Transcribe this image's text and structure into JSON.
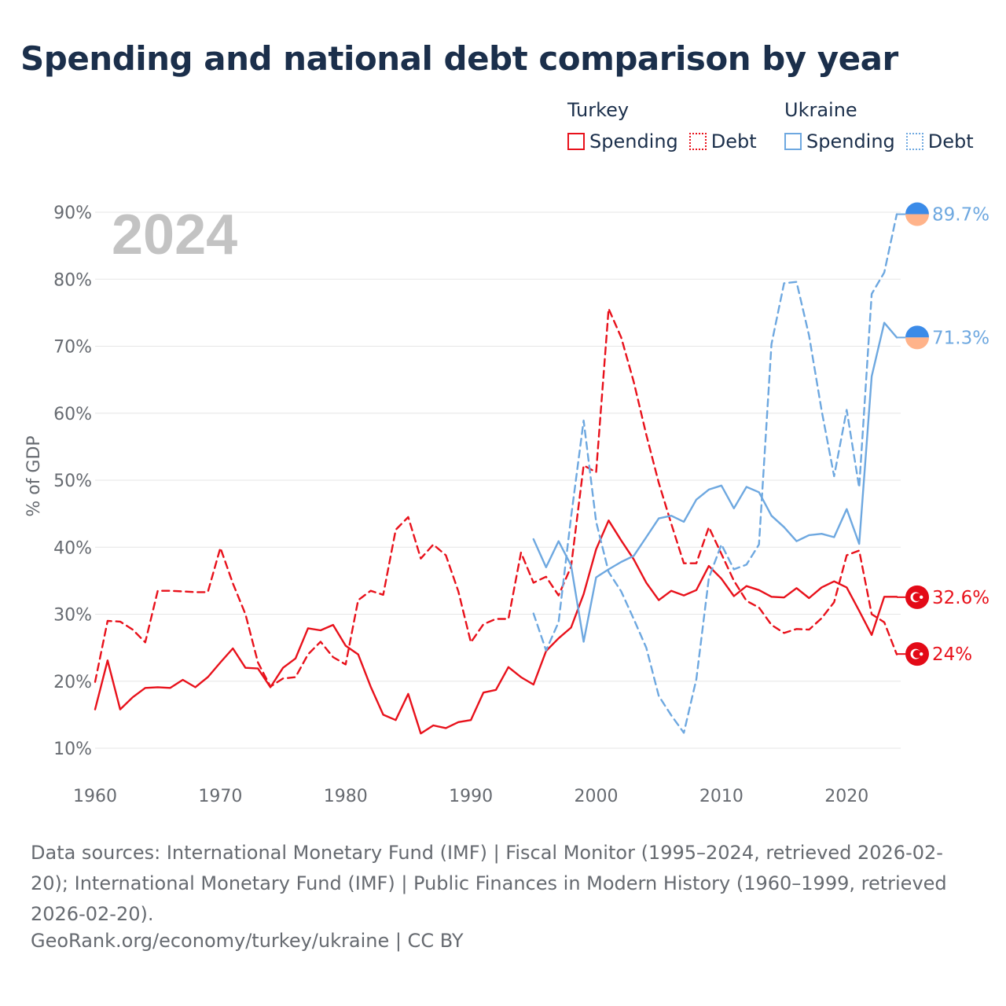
{
  "title": "Spending and national debt comparison by year",
  "colors": {
    "turkey": "#e8111b",
    "ukraine": "#6ea8e0",
    "grid": "#e6e6e6",
    "watermark": "#c3c3c3",
    "flag_blue": "#3b8be8",
    "flag_peach": "#ffb38a"
  },
  "legend": {
    "turkey": {
      "title": "Turkey",
      "spending": "Spending",
      "debt": "Debt"
    },
    "ukraine": {
      "title": "Ukraine",
      "spending": "Spending",
      "debt": "Debt"
    }
  },
  "sources": "Data sources: International Monetary Fund (IMF) | Fiscal Monitor (1995–2024, retrieved 2026-02-20); International Monetary Fund (IMF) | Public Finances in Modern History (1960–1999, retrieved 2026-02-20).",
  "credit": "GeoRank.org/economy/turkey/ukraine | CC BY",
  "chart_data": {
    "type": "line",
    "title": "Spending and national debt comparison by year",
    "watermark_year": "2024",
    "ylabel": "% of GDP",
    "xlabel": "",
    "xlim": [
      1960,
      2024
    ],
    "ylim": [
      10,
      90
    ],
    "x_ticks": [
      1960,
      1970,
      1980,
      1990,
      2000,
      2010,
      2020
    ],
    "x_tick_labels": [
      "1960",
      "1970",
      "1980",
      "1990",
      "2000",
      "2010",
      "2020"
    ],
    "y_ticks": [
      10,
      20,
      30,
      40,
      50,
      60,
      70,
      80,
      90
    ],
    "y_tick_labels": [
      "10%",
      "20%",
      "30%",
      "40%",
      "50%",
      "60%",
      "70%",
      "80%",
      "90%"
    ],
    "grid": true,
    "end_labels": {
      "turkey_spending": "32.6%",
      "turkey_debt": "24%",
      "ukraine_spending": "71.3%",
      "ukraine_debt": "89.7%"
    },
    "series": [
      {
        "id": "turkey_spending",
        "name": "Turkey Spending",
        "country": "turkey",
        "dash": "solid",
        "start": 1960,
        "values": [
          15.8,
          23.1,
          15.8,
          17.6,
          19.0,
          19.1,
          19.0,
          20.2,
          19.1,
          20.6,
          22.8,
          24.9,
          22.0,
          21.9,
          19.1,
          22.0,
          23.4,
          27.9,
          27.6,
          28.4,
          25.3,
          24.0,
          19.2,
          15.0,
          14.2,
          18.1,
          12.2,
          13.4,
          13.0,
          13.9,
          14.2,
          18.3,
          18.7,
          22.1,
          20.6,
          19.5,
          24.5,
          26.4,
          28.0,
          33.0,
          39.7,
          44.0,
          41.0,
          38.2,
          34.7,
          32.1,
          33.5,
          32.8,
          33.6,
          37.2,
          35.3,
          32.7,
          34.2,
          33.6,
          32.6,
          32.5,
          33.9,
          32.4,
          34.0,
          34.9,
          34.0,
          30.5,
          26.9,
          32.6,
          32.6
        ]
      },
      {
        "id": "turkey_debt",
        "name": "Turkey Debt",
        "country": "turkey",
        "dash": "dashed",
        "start": 1960,
        "values": [
          19.9,
          29.0,
          28.9,
          27.7,
          25.8,
          33.5,
          33.5,
          33.4,
          33.3,
          33.3,
          39.9,
          34.6,
          30.0,
          22.8,
          19.2,
          20.4,
          20.6,
          24.0,
          25.9,
          23.6,
          22.5,
          32.1,
          33.5,
          32.9,
          42.6,
          44.5,
          38.3,
          40.4,
          38.8,
          33.4,
          25.8,
          28.5,
          29.3,
          29.3,
          39.2,
          34.7,
          35.6,
          32.8,
          37.1,
          52.2,
          51.2,
          75.6,
          71.3,
          64.7,
          56.8,
          49.6,
          43.5,
          37.6,
          37.6,
          43.0,
          39.0,
          35.0,
          32.0,
          31.0,
          28.4,
          27.2,
          27.8,
          27.7,
          29.4,
          31.8,
          38.8,
          39.5,
          30.0,
          28.8,
          24.0
        ]
      },
      {
        "id": "ukraine_spending",
        "name": "Ukraine Spending",
        "country": "ukraine",
        "dash": "solid",
        "start": 1995,
        "values": [
          41.2,
          37.0,
          40.9,
          37.3,
          25.9,
          35.5,
          36.7,
          37.8,
          38.7,
          41.5,
          44.3,
          44.7,
          43.8,
          47.1,
          48.6,
          49.2,
          45.8,
          49.0,
          48.2,
          44.7,
          43.0,
          40.9,
          41.8,
          42.0,
          41.5,
          45.7,
          40.5,
          65.5,
          73.5,
          71.3
        ]
      },
      {
        "id": "ukraine_debt",
        "name": "Ukraine Debt",
        "country": "ukraine",
        "dash": "dashed",
        "start": 1995,
        "values": [
          30.1,
          24.6,
          28.8,
          44.5,
          58.9,
          43.8,
          36.3,
          33.4,
          29.3,
          25.0,
          17.8,
          14.9,
          12.3,
          20.3,
          35.4,
          40.4,
          36.7,
          37.4,
          40.4,
          70.3,
          79.4,
          79.6,
          71.6,
          60.4,
          50.6,
          60.5,
          48.9,
          77.8,
          81.0,
          89.7
        ]
      }
    ]
  }
}
